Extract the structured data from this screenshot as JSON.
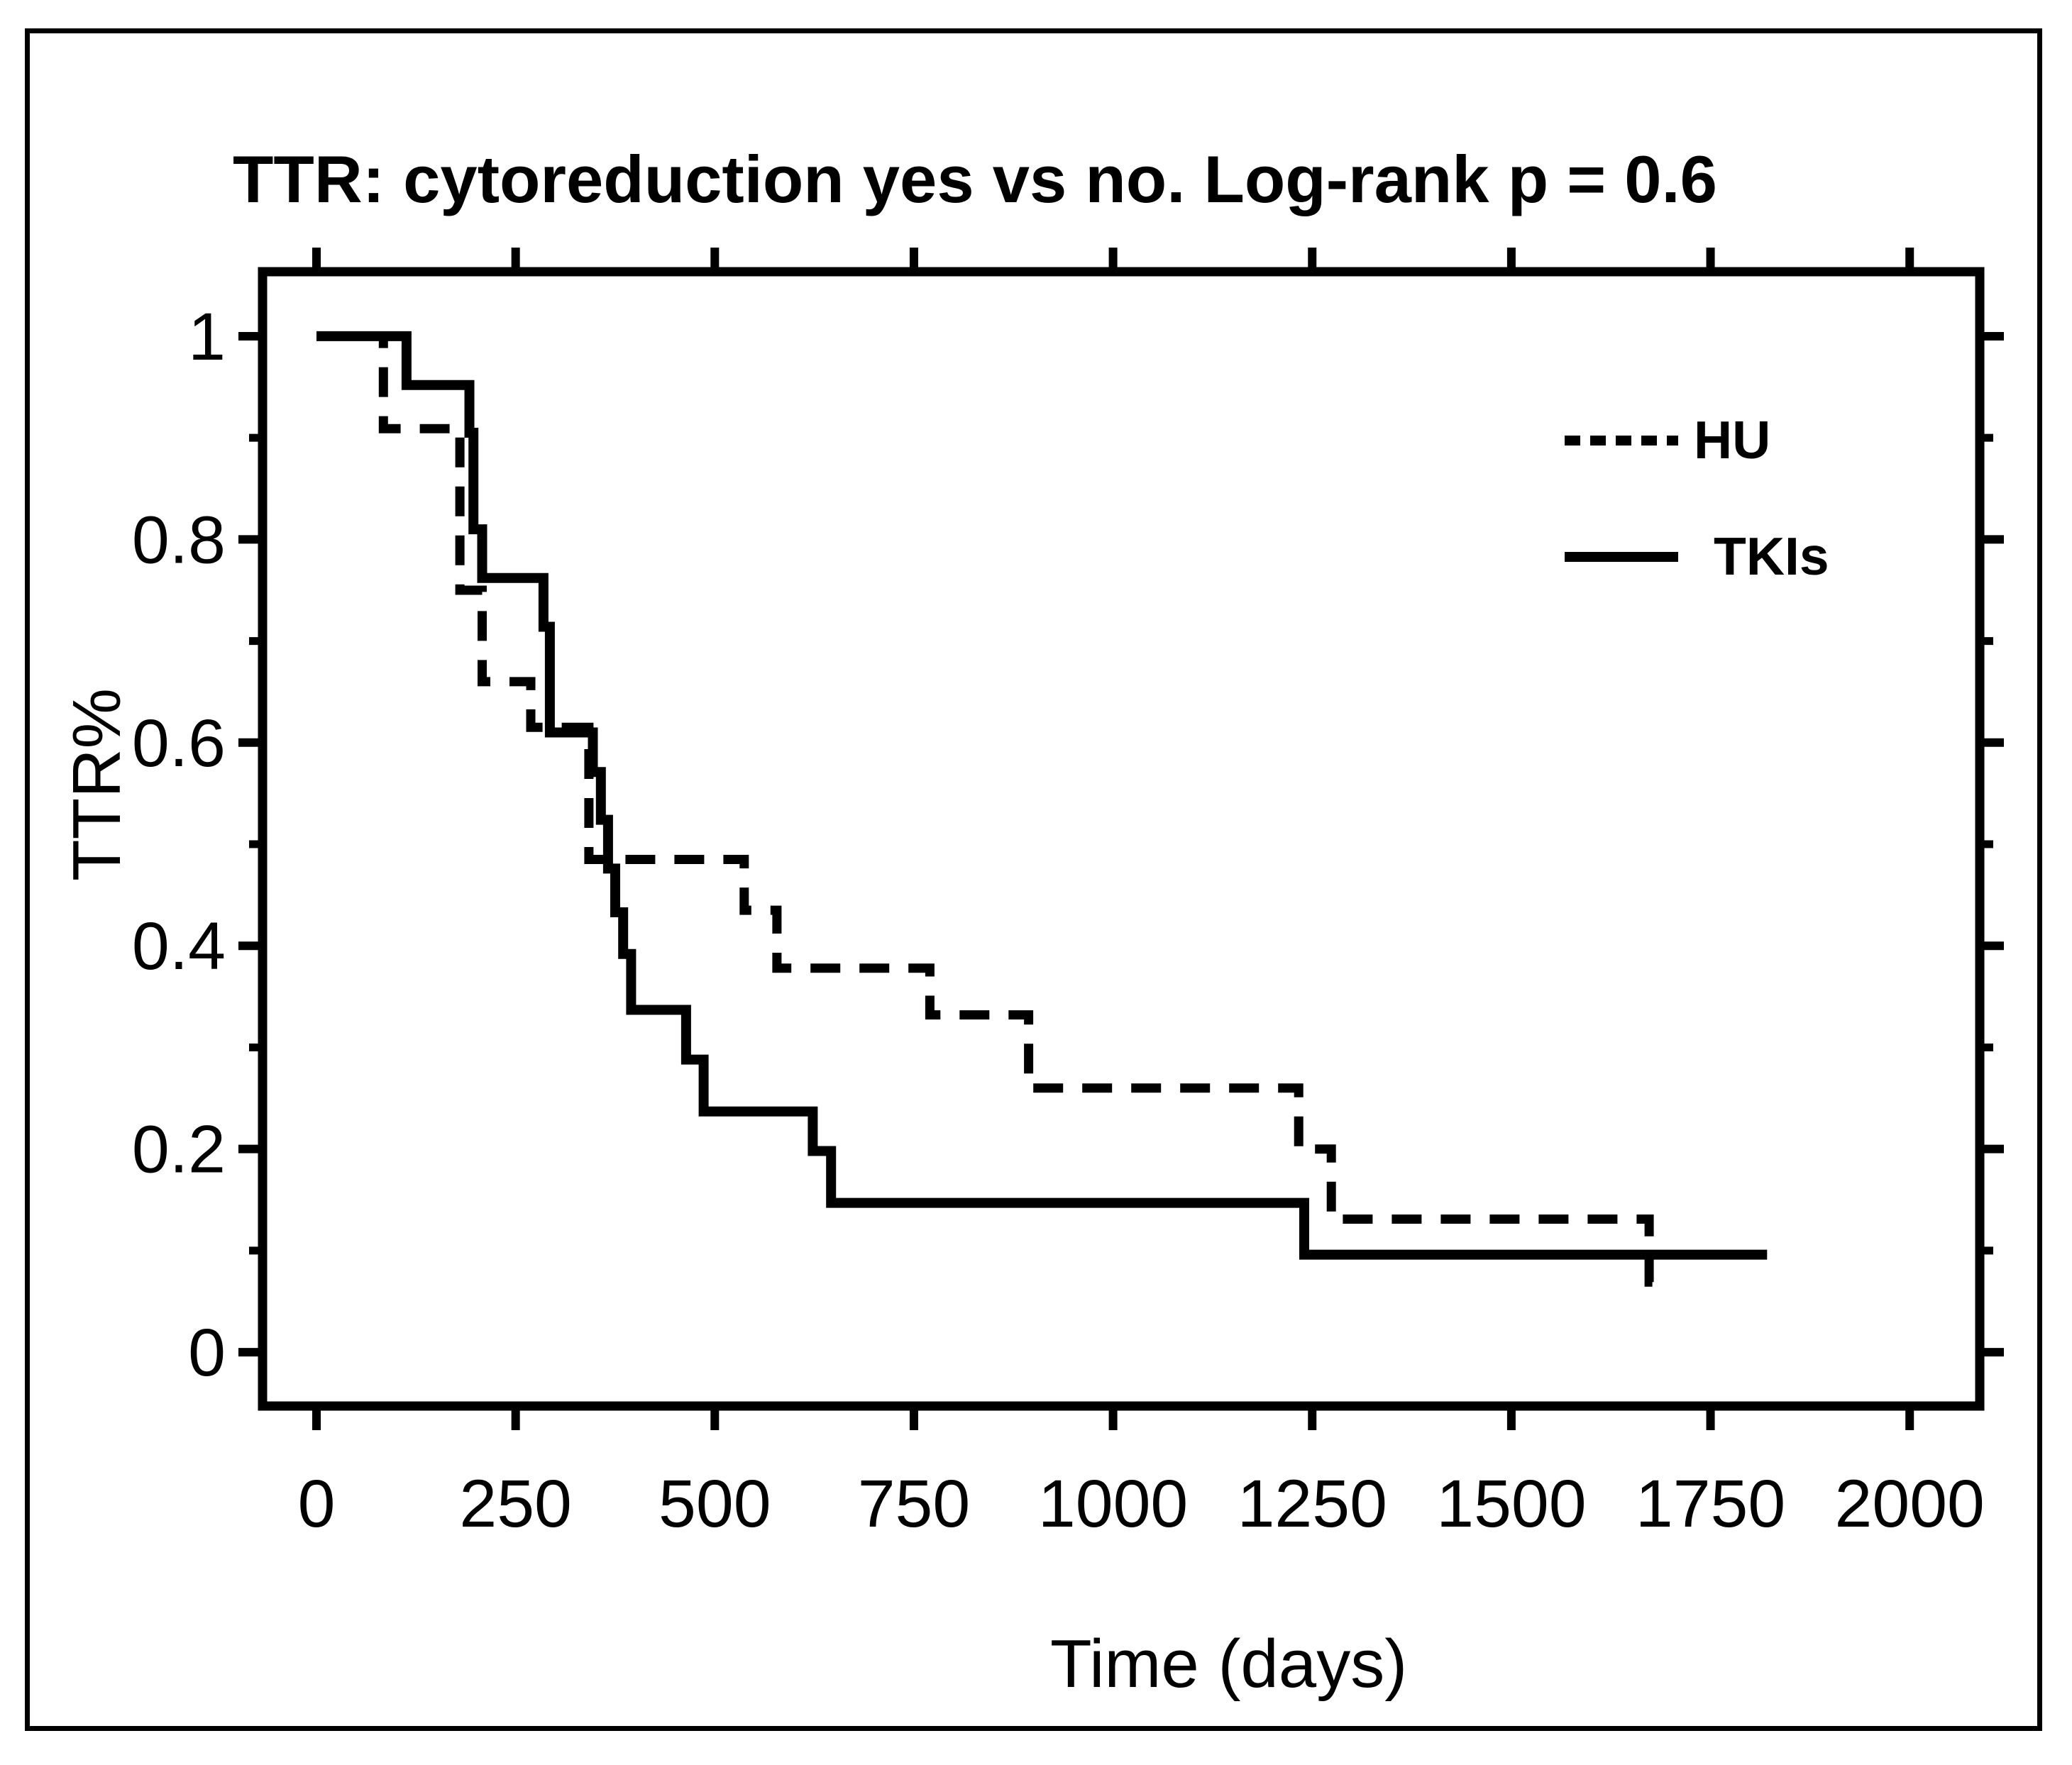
{
  "chart_data": {
    "type": "line",
    "subtype": "kaplan-meier-step-curves",
    "title": "TTR: cytoreduction yes vs no. Log-rank p = 0.6",
    "xlabel": "Time (days)",
    "ylabel": "TTR%",
    "xlim": [
      -67.7,
      2088
    ],
    "ylim": [
      -0.053,
      1.0635
    ],
    "grid": false,
    "frame_box": true,
    "line_color": "#000000",
    "background_color": "#ffffff",
    "xticks": {
      "values": [
        0,
        250,
        500,
        750,
        1000,
        1250,
        1500,
        1750,
        2000
      ],
      "labels": [
        "0",
        "250",
        "500",
        "750",
        "1000",
        "1250",
        "1500",
        "1750",
        "2000"
      ]
    },
    "yticks_major": {
      "values": [
        0,
        0.2,
        0.4,
        0.6,
        0.8,
        1
      ],
      "labels": [
        "0",
        "0.2",
        "0.4",
        "0.6",
        "0.8",
        "1"
      ]
    },
    "yticks_minor": [
      0.1,
      0.3,
      0.5,
      0.7,
      0.9
    ],
    "legend": {
      "position": "upper-right-inside",
      "items": [
        {
          "label": "HU",
          "style": "dashed"
        },
        {
          "label": "TKIs",
          "style": "solid"
        }
      ]
    },
    "series": [
      {
        "name": "HU",
        "style": "dashed",
        "stroke_width": 13,
        "dash_pattern": [
          42,
          27
        ],
        "end_t": 1686,
        "points": [
          [
            0,
            1.0
          ],
          [
            84,
            0.909
          ],
          [
            180,
            0.75
          ],
          [
            208,
            0.66
          ],
          [
            269,
            0.615
          ],
          [
            342,
            0.485
          ],
          [
            537,
            0.435
          ],
          [
            578,
            0.378
          ],
          [
            770,
            0.332
          ],
          [
            894,
            0.26
          ],
          [
            1233,
            0.2
          ],
          [
            1274,
            0.131
          ],
          [
            1673,
            0.069
          ]
        ]
      },
      {
        "name": "TKIs",
        "style": "solid",
        "stroke_width": 14,
        "dash_pattern": null,
        "end_t": 1821,
        "points": [
          [
            0,
            1.0
          ],
          [
            113,
            0.952
          ],
          [
            192,
            0.905
          ],
          [
            197,
            0.81
          ],
          [
            208,
            0.762
          ],
          [
            285,
            0.714
          ],
          [
            293,
            0.61
          ],
          [
            347,
            0.571
          ],
          [
            357,
            0.524
          ],
          [
            366,
            0.476
          ],
          [
            375,
            0.433
          ],
          [
            385,
            0.392
          ],
          [
            395,
            0.337
          ],
          [
            464,
            0.288
          ],
          [
            486,
            0.237
          ],
          [
            623,
            0.198
          ],
          [
            646,
            0.147
          ],
          [
            1240,
            0.096
          ]
        ]
      }
    ]
  }
}
